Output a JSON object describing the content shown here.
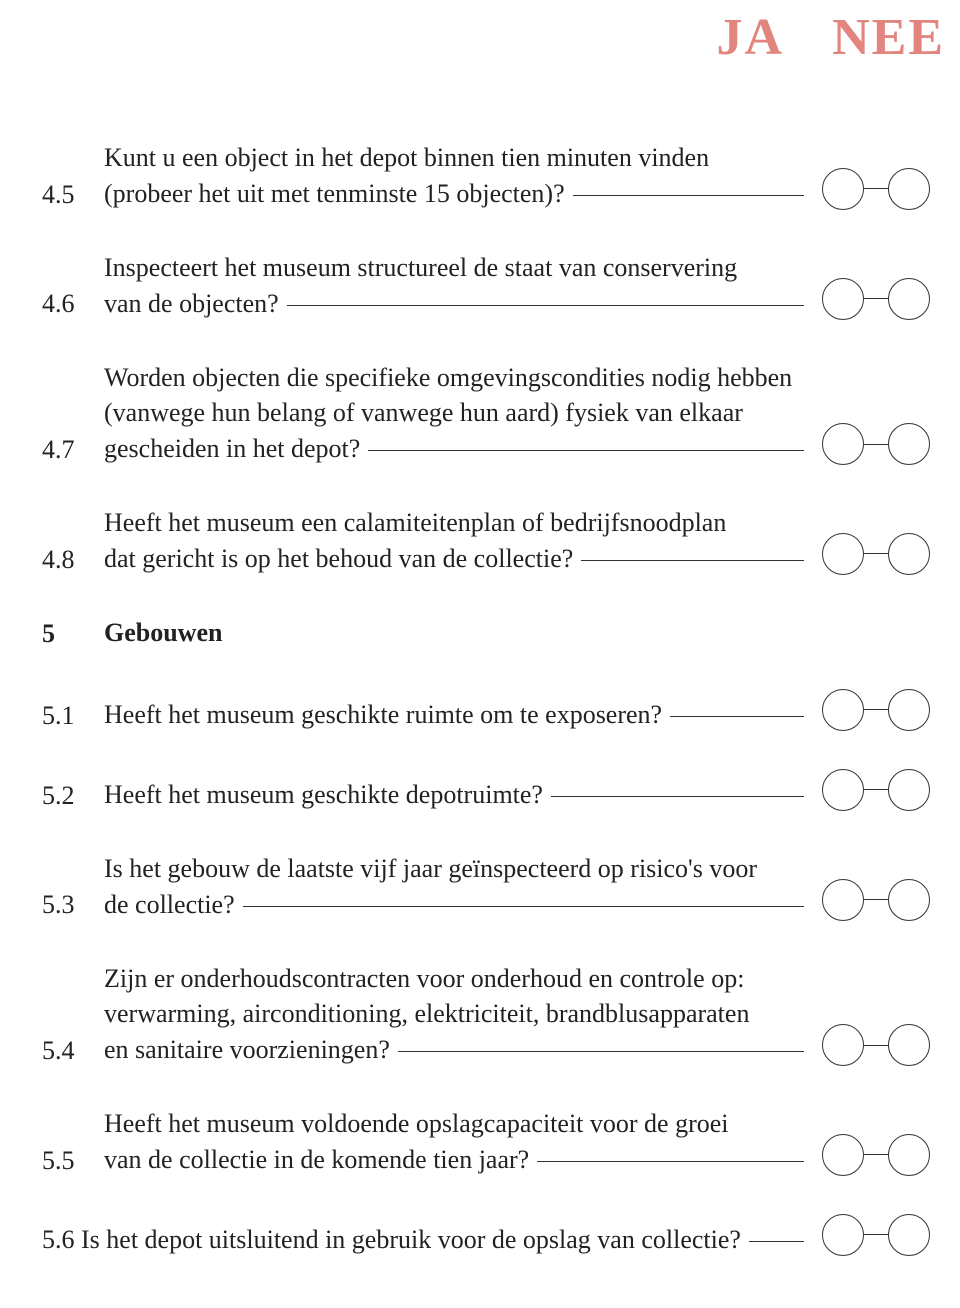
{
  "colors": {
    "header": "#e2857e",
    "text": "#222222",
    "line": "#333333",
    "background": "#ffffff"
  },
  "typography": {
    "body_fontsize": 26,
    "header_fontsize": 52,
    "line_height": 1.38
  },
  "header": {
    "ja": "JA",
    "nee": "NEE"
  },
  "items": [
    {
      "id": "4.5",
      "num": "4.5",
      "pre": "Kunt u een object in het depot binnen tien minuten vinden",
      "last": "(probeer het uit met tenminste 15 objecten)?"
    },
    {
      "id": "4.6",
      "num": "4.6",
      "pre": "Inspecteert het museum structureel de staat van conservering",
      "last": "van de objecten?"
    },
    {
      "id": "4.7",
      "num": "4.7",
      "pre": "Worden objecten die specifieke omgevingscondities nodig hebben (vanwege hun belang of vanwege hun aard) fysiek van elkaar",
      "last": "gescheiden in het depot?"
    },
    {
      "id": "4.8",
      "num": "4.8",
      "pre": "Heeft het museum een calamiteitenplan of bedrijfsnoodplan",
      "last": "dat gericht is op het behoud van de collectie?"
    },
    {
      "id": "5",
      "num": "5",
      "section": true,
      "bold": true,
      "last": "Gebouwen"
    },
    {
      "id": "5.1",
      "num": "5.1",
      "pre": "",
      "last": "Heeft het museum geschikte ruimte om te exposeren?"
    },
    {
      "id": "5.2",
      "num": "5.2",
      "pre": "",
      "last": "Heeft het museum geschikte depotruimte?"
    },
    {
      "id": "5.3",
      "num": "5.3",
      "pre": "Is het gebouw de laatste vijf jaar geïnspecteerd op risico's voor",
      "last": "de collectie?"
    },
    {
      "id": "5.4",
      "num": "5.4",
      "pre": "Zijn er onderhoudscontracten voor onderhoud en controle op: verwarming, airconditioning, elektriciteit, brandblusapparaten",
      "last": "en sanitaire voorzieningen?"
    },
    {
      "id": "5.5",
      "num": "5.5",
      "pre": "Heeft het museum voldoende opslagcapaciteit voor de groei",
      "last": "van de collectie in de komende tien jaar?"
    },
    {
      "id": "5.6",
      "num": "",
      "pre": "",
      "last": "5.6 Is het depot uitsluitend in gebruik voor de opslag van collectie?"
    }
  ]
}
